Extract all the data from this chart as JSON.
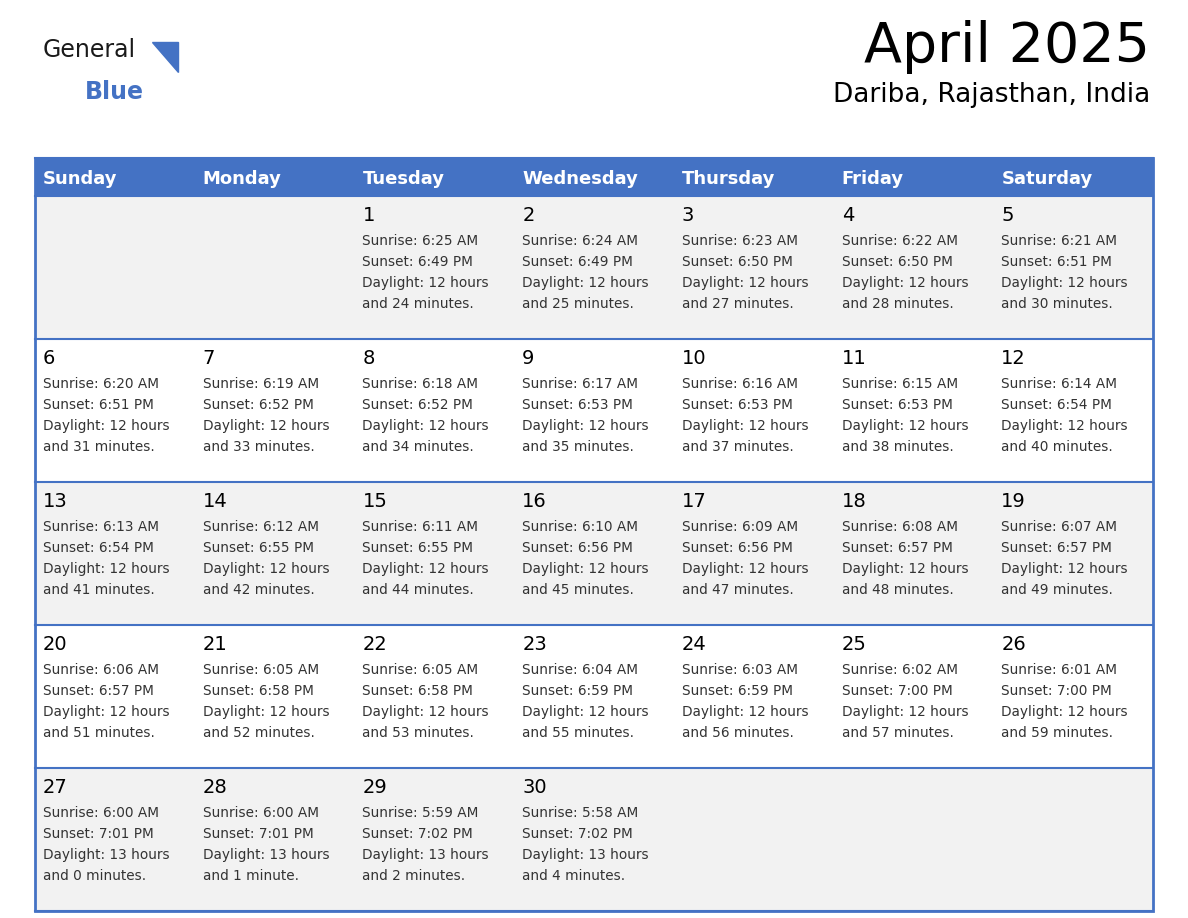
{
  "title": "April 2025",
  "subtitle": "Dariba, Rajasthan, India",
  "header_bg_color": "#4472C4",
  "header_text_color": "#FFFFFF",
  "row_bg_colors": [
    "#F2F2F2",
    "#FFFFFF",
    "#F2F2F2",
    "#FFFFFF",
    "#F2F2F2"
  ],
  "border_color": "#4472C4",
  "text_color": "#333333",
  "day_headers": [
    "Sunday",
    "Monday",
    "Tuesday",
    "Wednesday",
    "Thursday",
    "Friday",
    "Saturday"
  ],
  "weeks": [
    [
      {
        "day": "",
        "sunrise": "",
        "sunset": "",
        "daylight": ""
      },
      {
        "day": "",
        "sunrise": "",
        "sunset": "",
        "daylight": ""
      },
      {
        "day": "1",
        "sunrise": "6:25 AM",
        "sunset": "6:49 PM",
        "daylight": "12 hours and 24 minutes."
      },
      {
        "day": "2",
        "sunrise": "6:24 AM",
        "sunset": "6:49 PM",
        "daylight": "12 hours and 25 minutes."
      },
      {
        "day": "3",
        "sunrise": "6:23 AM",
        "sunset": "6:50 PM",
        "daylight": "12 hours and 27 minutes."
      },
      {
        "day": "4",
        "sunrise": "6:22 AM",
        "sunset": "6:50 PM",
        "daylight": "12 hours and 28 minutes."
      },
      {
        "day": "5",
        "sunrise": "6:21 AM",
        "sunset": "6:51 PM",
        "daylight": "12 hours and 30 minutes."
      }
    ],
    [
      {
        "day": "6",
        "sunrise": "6:20 AM",
        "sunset": "6:51 PM",
        "daylight": "12 hours and 31 minutes."
      },
      {
        "day": "7",
        "sunrise": "6:19 AM",
        "sunset": "6:52 PM",
        "daylight": "12 hours and 33 minutes."
      },
      {
        "day": "8",
        "sunrise": "6:18 AM",
        "sunset": "6:52 PM",
        "daylight": "12 hours and 34 minutes."
      },
      {
        "day": "9",
        "sunrise": "6:17 AM",
        "sunset": "6:53 PM",
        "daylight": "12 hours and 35 minutes."
      },
      {
        "day": "10",
        "sunrise": "6:16 AM",
        "sunset": "6:53 PM",
        "daylight": "12 hours and 37 minutes."
      },
      {
        "day": "11",
        "sunrise": "6:15 AM",
        "sunset": "6:53 PM",
        "daylight": "12 hours and 38 minutes."
      },
      {
        "day": "12",
        "sunrise": "6:14 AM",
        "sunset": "6:54 PM",
        "daylight": "12 hours and 40 minutes."
      }
    ],
    [
      {
        "day": "13",
        "sunrise": "6:13 AM",
        "sunset": "6:54 PM",
        "daylight": "12 hours and 41 minutes."
      },
      {
        "day": "14",
        "sunrise": "6:12 AM",
        "sunset": "6:55 PM",
        "daylight": "12 hours and 42 minutes."
      },
      {
        "day": "15",
        "sunrise": "6:11 AM",
        "sunset": "6:55 PM",
        "daylight": "12 hours and 44 minutes."
      },
      {
        "day": "16",
        "sunrise": "6:10 AM",
        "sunset": "6:56 PM",
        "daylight": "12 hours and 45 minutes."
      },
      {
        "day": "17",
        "sunrise": "6:09 AM",
        "sunset": "6:56 PM",
        "daylight": "12 hours and 47 minutes."
      },
      {
        "day": "18",
        "sunrise": "6:08 AM",
        "sunset": "6:57 PM",
        "daylight": "12 hours and 48 minutes."
      },
      {
        "day": "19",
        "sunrise": "6:07 AM",
        "sunset": "6:57 PM",
        "daylight": "12 hours and 49 minutes."
      }
    ],
    [
      {
        "day": "20",
        "sunrise": "6:06 AM",
        "sunset": "6:57 PM",
        "daylight": "12 hours and 51 minutes."
      },
      {
        "day": "21",
        "sunrise": "6:05 AM",
        "sunset": "6:58 PM",
        "daylight": "12 hours and 52 minutes."
      },
      {
        "day": "22",
        "sunrise": "6:05 AM",
        "sunset": "6:58 PM",
        "daylight": "12 hours and 53 minutes."
      },
      {
        "day": "23",
        "sunrise": "6:04 AM",
        "sunset": "6:59 PM",
        "daylight": "12 hours and 55 minutes."
      },
      {
        "day": "24",
        "sunrise": "6:03 AM",
        "sunset": "6:59 PM",
        "daylight": "12 hours and 56 minutes."
      },
      {
        "day": "25",
        "sunrise": "6:02 AM",
        "sunset": "7:00 PM",
        "daylight": "12 hours and 57 minutes."
      },
      {
        "day": "26",
        "sunrise": "6:01 AM",
        "sunset": "7:00 PM",
        "daylight": "12 hours and 59 minutes."
      }
    ],
    [
      {
        "day": "27",
        "sunrise": "6:00 AM",
        "sunset": "7:01 PM",
        "daylight": "13 hours and 0 minutes."
      },
      {
        "day": "28",
        "sunrise": "6:00 AM",
        "sunset": "7:01 PM",
        "daylight": "13 hours and 1 minute."
      },
      {
        "day": "29",
        "sunrise": "5:59 AM",
        "sunset": "7:02 PM",
        "daylight": "13 hours and 2 minutes."
      },
      {
        "day": "30",
        "sunrise": "5:58 AM",
        "sunset": "7:02 PM",
        "daylight": "13 hours and 4 minutes."
      },
      {
        "day": "",
        "sunrise": "",
        "sunset": "",
        "daylight": ""
      },
      {
        "day": "",
        "sunrise": "",
        "sunset": "",
        "daylight": ""
      },
      {
        "day": "",
        "sunrise": "",
        "sunset": "",
        "daylight": ""
      }
    ]
  ],
  "fig_width": 11.88,
  "fig_height": 9.18,
  "dpi": 100,
  "logo_general_color": "#1a1a1a",
  "logo_blue_color": "#4472C4",
  "logo_triangle_color": "#4472C4"
}
